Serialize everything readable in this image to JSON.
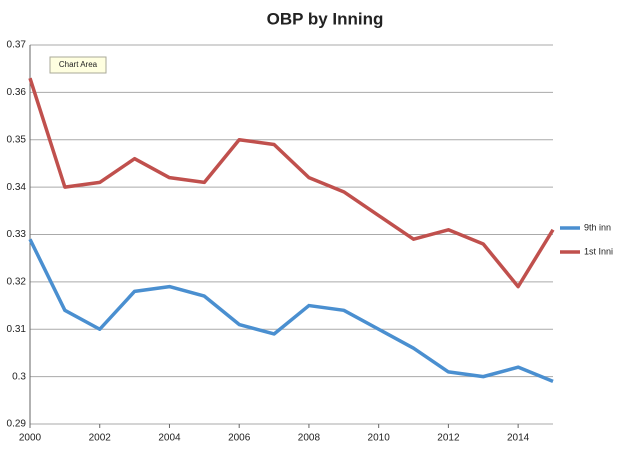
{
  "chart_data": {
    "type": "line",
    "title": "OBP by Inning",
    "annotation": "Chart Area",
    "x": [
      2000,
      2001,
      2002,
      2003,
      2004,
      2005,
      2006,
      2007,
      2008,
      2009,
      2010,
      2011,
      2012,
      2013,
      2014,
      2015
    ],
    "series": [
      {
        "name": "9th inn",
        "color": "#4a8fd0",
        "values": [
          0.329,
          0.314,
          0.31,
          0.318,
          0.319,
          0.317,
          0.311,
          0.309,
          0.315,
          0.314,
          0.31,
          0.306,
          0.301,
          0.3,
          0.302,
          0.299
        ]
      },
      {
        "name": "1st Inni",
        "color": "#c0504d",
        "values": [
          0.363,
          0.34,
          0.341,
          0.346,
          0.342,
          0.341,
          0.35,
          0.349,
          0.342,
          0.339,
          0.334,
          0.329,
          0.331,
          0.328,
          0.319,
          0.331
        ]
      }
    ],
    "xlim": [
      2000,
      2015
    ],
    "xticks": [
      2000,
      2002,
      2004,
      2006,
      2008,
      2010,
      2012,
      2014
    ],
    "ylim": [
      0.29,
      0.37
    ],
    "yticks": [
      0.29,
      0.3,
      0.31,
      0.32,
      0.33,
      0.34,
      0.35,
      0.36,
      0.37
    ],
    "grid": true
  }
}
